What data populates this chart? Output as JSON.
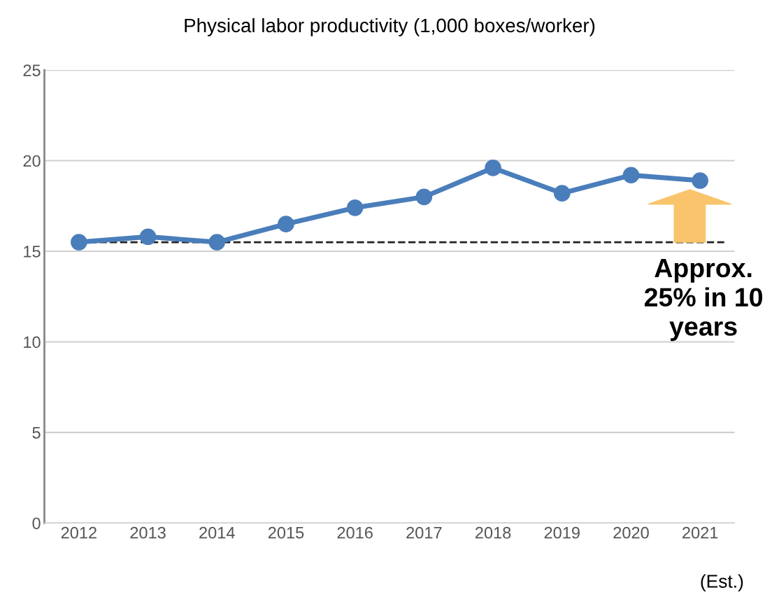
{
  "chart_data": {
    "type": "line",
    "title": "Physical labor productivity (1,000 boxes/worker)",
    "categories": [
      "2012",
      "2013",
      "2014",
      "2015",
      "2016",
      "2017",
      "2018",
      "2019",
      "2020",
      "2021"
    ],
    "series": [
      {
        "color": "#4a7ebb",
        "values": [
          15.5,
          15.8,
          15.5,
          16.5,
          17.4,
          18.0,
          19.6,
          18.2,
          19.2,
          18.9
        ]
      }
    ],
    "ylim": [
      0,
      25
    ],
    "yticks": [
      0,
      5,
      10,
      15,
      20,
      25
    ],
    "grid": "y",
    "marker": "circle",
    "line_style": "solid",
    "ref_lines": [
      {
        "axis": "y",
        "value": 15.5,
        "color": "#222222",
        "line_style": "dashed"
      }
    ],
    "annotations": [
      "Approx.\n25% in 10\nyears",
      "(Est.)"
    ]
  }
}
